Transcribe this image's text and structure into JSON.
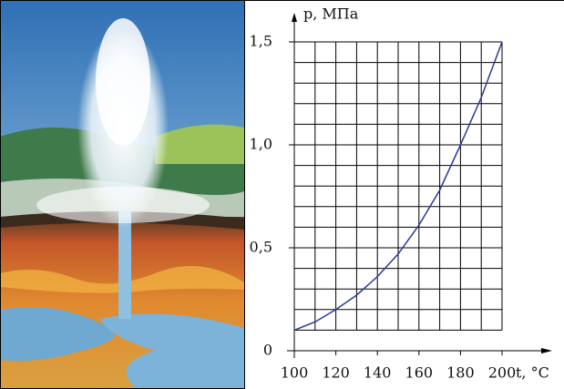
{
  "chart_data": {
    "type": "line",
    "y_label": "p, МПа",
    "x_label": "t, °C",
    "x": [
      100,
      110,
      120,
      130,
      140,
      150,
      160,
      170,
      180,
      190,
      200
    ],
    "values": [
      0.1,
      0.14,
      0.2,
      0.27,
      0.36,
      0.47,
      0.61,
      0.78,
      1.0,
      1.23,
      1.5
    ],
    "color": "#2b3a8f",
    "xlim": [
      100,
      200
    ],
    "ylim": [
      0,
      1.5
    ],
    "xticks": [
      100,
      120,
      140,
      160,
      180,
      200
    ],
    "yticks": [
      0,
      {
        "value": 0.5,
        "label": "0,5"
      },
      {
        "value": 1.0,
        "label": "1,0"
      },
      {
        "value": 1.5,
        "label": "1,5"
      }
    ],
    "xgrid": [
      100,
      110,
      120,
      130,
      140,
      150,
      160,
      170,
      180,
      190,
      200
    ],
    "ygrid": [
      0.1,
      0.2,
      0.3,
      0.4,
      0.5,
      0.6,
      0.7,
      0.8,
      0.9,
      1.0,
      1.1,
      1.2,
      1.3,
      1.4,
      1.5
    ],
    "grid": true
  }
}
